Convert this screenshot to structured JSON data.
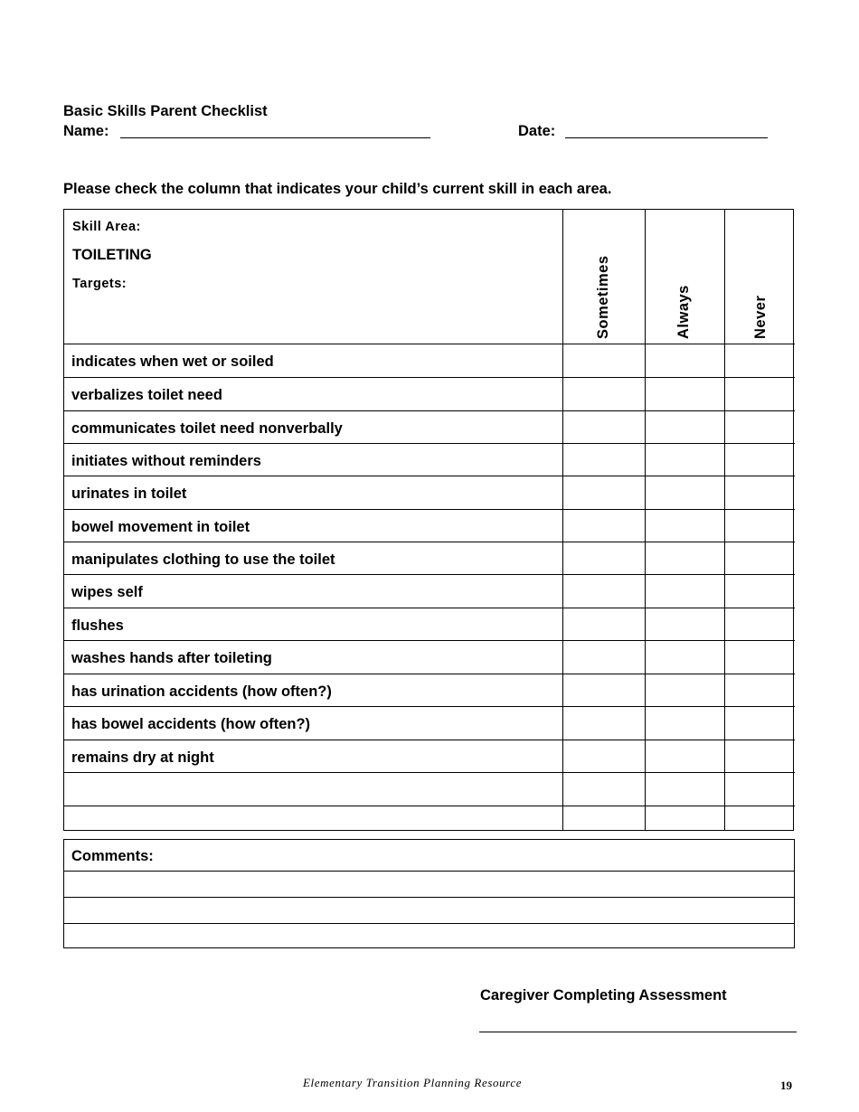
{
  "title": "Basic Skills Parent Checklist",
  "name_label": "Name:",
  "date_label": "Date:",
  "instructions": "Please check the column that indicates your child’s current skill in each area.",
  "table": {
    "skill_area_label": "Skill Area:",
    "skill_area": "TOILETING",
    "targets_label": "Targets:",
    "columns": [
      "Sometimes",
      "Always",
      "Never"
    ],
    "rows": [
      "indicates when wet or soiled",
      "verbalizes toilet need",
      "communicates toilet need nonverbally",
      "initiates without reminders",
      "urinates in toilet",
      "bowel movement in toilet",
      "manipulates clothing to use the toilet",
      "wipes self",
      "flushes",
      "washes hands after toileting",
      "has urination accidents (how often?)",
      "has bowel accidents (how often?)",
      "remains dry at night",
      "",
      ""
    ]
  },
  "comments_label": "Comments:",
  "caregiver_label": "Caregiver Completing Assessment",
  "footer": "Elementary Transition Planning Resource",
  "page_number": "19"
}
